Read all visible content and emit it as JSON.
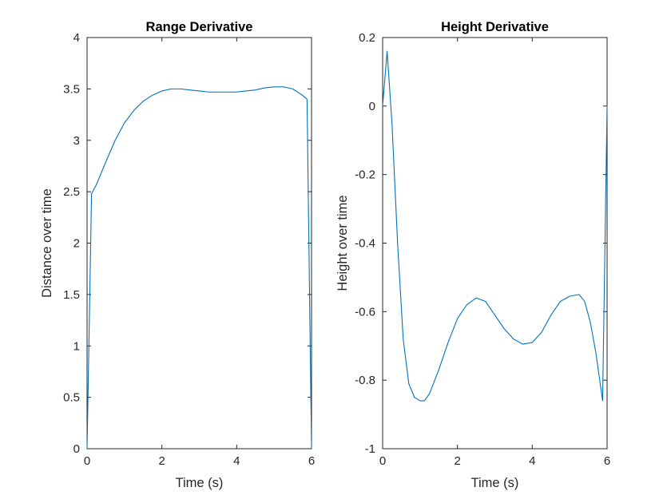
{
  "chart_data": [
    {
      "type": "line",
      "title": "Range Derivative",
      "xlabel": "Time (s)",
      "ylabel": "Distance over time",
      "xlim": [
        0,
        6
      ],
      "ylim": [
        0,
        4
      ],
      "xticks": [
        0,
        2,
        4,
        6
      ],
      "xtick_labels": [
        "0",
        "2",
        "4",
        "6"
      ],
      "yticks": [
        0,
        0.5,
        1,
        1.5,
        2,
        2.5,
        3,
        3.5,
        4
      ],
      "ytick_labels": [
        "0",
        "0.5",
        "1",
        "1.5",
        "2",
        "2.5",
        "3",
        "3.5",
        "4"
      ],
      "grid": false,
      "line_color": "#0072BD",
      "series": [
        {
          "x": [
            0,
            0.12,
            0.25,
            0.5,
            0.75,
            1.0,
            1.25,
            1.5,
            1.75,
            2.0,
            2.25,
            2.5,
            2.75,
            3.0,
            3.25,
            3.5,
            3.75,
            4.0,
            4.25,
            4.5,
            4.75,
            5.0,
            5.25,
            5.5,
            5.75,
            5.88,
            6.0
          ],
          "y": [
            0,
            2.48,
            2.57,
            2.79,
            3.0,
            3.17,
            3.29,
            3.38,
            3.44,
            3.48,
            3.5,
            3.5,
            3.49,
            3.48,
            3.47,
            3.47,
            3.47,
            3.47,
            3.48,
            3.49,
            3.51,
            3.52,
            3.52,
            3.5,
            3.44,
            3.4,
            0
          ]
        }
      ]
    },
    {
      "type": "line",
      "title": "Height Derivative",
      "xlabel": "Time (s)",
      "ylabel": "Height over time",
      "xlim": [
        0,
        6
      ],
      "ylim": [
        -1,
        0.2
      ],
      "xticks": [
        0,
        2,
        4,
        6
      ],
      "xtick_labels": [
        "0",
        "2",
        "4",
        "6"
      ],
      "yticks": [
        -1,
        -0.8,
        -0.6,
        -0.4,
        -0.2,
        0,
        0.2
      ],
      "ytick_labels": [
        "-1",
        "-0.8",
        "-0.6",
        "-0.4",
        "-0.2",
        "0",
        "0.2"
      ],
      "grid": false,
      "line_color": "#0072BD",
      "series": [
        {
          "x": [
            0,
            0.12,
            0.25,
            0.4,
            0.55,
            0.7,
            0.85,
            1.0,
            1.12,
            1.25,
            1.5,
            1.75,
            2.0,
            2.25,
            2.5,
            2.75,
            3.0,
            3.25,
            3.5,
            3.75,
            4.0,
            4.25,
            4.5,
            4.75,
            5.0,
            5.25,
            5.4,
            5.55,
            5.7,
            5.88,
            6.0
          ],
          "y": [
            0,
            0.16,
            -0.05,
            -0.4,
            -0.68,
            -0.81,
            -0.85,
            -0.86,
            -0.86,
            -0.84,
            -0.77,
            -0.69,
            -0.62,
            -0.58,
            -0.56,
            -0.57,
            -0.61,
            -0.65,
            -0.68,
            -0.695,
            -0.69,
            -0.66,
            -0.61,
            -0.57,
            -0.555,
            -0.55,
            -0.57,
            -0.63,
            -0.72,
            -0.86,
            0
          ]
        }
      ]
    }
  ]
}
